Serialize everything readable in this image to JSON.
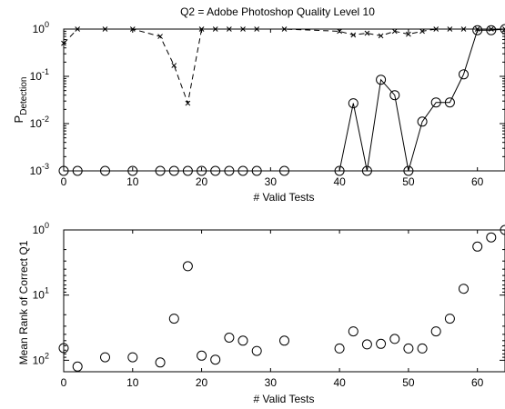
{
  "chart_data": [
    {
      "type": "line",
      "title": "Q2 = Adobe Photoshop Quality Level 10",
      "xlabel": "# Valid Tests",
      "ylabel_main": "P",
      "ylabel_sub": "Detection",
      "yscale": "log",
      "xlim": [
        0,
        64
      ],
      "ylim": [
        0.001,
        1
      ],
      "xticks": [
        0,
        10,
        20,
        30,
        40,
        50,
        60
      ],
      "yticks": [
        {
          "value": 0.001,
          "base": "10",
          "exp": "-3"
        },
        {
          "value": 0.01,
          "base": "10",
          "exp": "-2"
        },
        {
          "value": 0.1,
          "base": "10",
          "exp": "-1"
        },
        {
          "value": 1,
          "base": "10",
          "exp": "0"
        }
      ],
      "series": [
        {
          "marker": "x",
          "line": "dashed",
          "x": [
            0,
            2,
            6,
            10,
            14,
            16,
            18,
            20,
            22,
            24,
            26,
            28,
            32,
            40,
            42,
            44,
            46,
            48,
            50,
            52,
            54,
            56,
            58,
            60,
            62,
            64
          ],
          "y": [
            0.5,
            1,
            1,
            1,
            0.7,
            0.17,
            0.027,
            1,
            1,
            1,
            1,
            1,
            1,
            0.9,
            0.75,
            0.82,
            0.72,
            0.9,
            0.78,
            0.9,
            1,
            1,
            1,
            1,
            1,
            1
          ]
        },
        {
          "marker": "o",
          "line": "solid",
          "x": [
            0,
            2,
            6,
            10,
            14,
            16,
            18,
            20,
            22,
            24,
            26,
            28,
            32,
            40,
            42,
            44,
            46,
            48,
            50,
            52,
            54,
            56,
            58,
            60,
            62,
            64
          ],
          "y": [
            0.001,
            0.001,
            0.001,
            0.001,
            0.001,
            0.001,
            0.001,
            0.001,
            0.001,
            0.001,
            0.001,
            0.001,
            0.001,
            0.001,
            0.027,
            0.001,
            0.085,
            0.04,
            0.001,
            0.011,
            0.028,
            0.028,
            0.11,
            0.95,
            0.95,
            1
          ]
        }
      ]
    },
    {
      "type": "scatter",
      "title": "",
      "xlabel": "# Valid Tests",
      "ylabel": "Mean Rank of Correct Q1",
      "yscale": "log",
      "yaxis_reversed": true,
      "xlim": [
        0,
        64
      ],
      "ylim": [
        1,
        150
      ],
      "xticks": [
        0,
        10,
        20,
        30,
        40,
        50,
        60
      ],
      "yticks": [
        {
          "value": 1,
          "base": "10",
          "exp": "0"
        },
        {
          "value": 10,
          "base": "10",
          "exp": "1"
        },
        {
          "value": 100,
          "base": "10",
          "exp": "2"
        }
      ],
      "series": [
        {
          "marker": "o",
          "x": [
            0,
            2,
            6,
            10,
            14,
            16,
            18,
            20,
            22,
            24,
            26,
            28,
            32,
            40,
            42,
            44,
            46,
            48,
            50,
            52,
            54,
            56,
            58,
            60,
            62,
            64
          ],
          "y": [
            65,
            125,
            90,
            90,
            108,
            23,
            3.6,
            85,
            98,
            45,
            50,
            72,
            50,
            66,
            36,
            57,
            56,
            47,
            66,
            66,
            36,
            23,
            8,
            1.8,
            1.3,
            1
          ]
        }
      ]
    }
  ]
}
